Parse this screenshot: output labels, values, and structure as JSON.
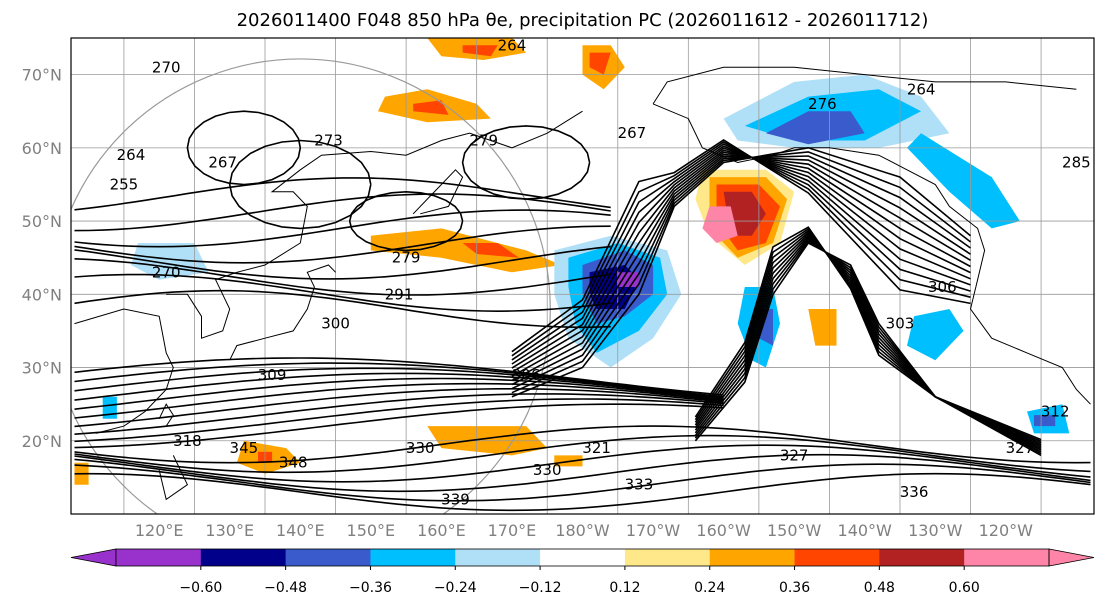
{
  "title": "2026011400 F048 850 hPa θe, precipitation PC (2026011612 - 2026011712)",
  "map": {
    "lat_ticks": [
      {
        "label": "70°N",
        "lat": 70
      },
      {
        "label": "60°N",
        "lat": 60
      },
      {
        "label": "50°N",
        "lat": 50
      },
      {
        "label": "40°N",
        "lat": 40
      },
      {
        "label": "30°N",
        "lat": 30
      },
      {
        "label": "20°N",
        "lat": 20
      }
    ],
    "lon_ticks": [
      "120°E",
      "130°E",
      "140°E",
      "150°E",
      "160°E",
      "170°E",
      "180°W",
      "170°W",
      "160°W",
      "150°W",
      "140°W",
      "130°W",
      "120°W"
    ],
    "contour_labels": [
      {
        "text": "264",
        "lon": 170,
        "lat": 74
      },
      {
        "text": "270",
        "lon": 121,
        "lat": 71
      },
      {
        "text": "273",
        "lon": 144,
        "lat": 61
      },
      {
        "text": "264",
        "lon": 116,
        "lat": 59
      },
      {
        "text": "267",
        "lon": 129,
        "lat": 58
      },
      {
        "text": "255",
        "lon": 115,
        "lat": 55
      },
      {
        "text": "270",
        "lon": 121,
        "lat": 43
      },
      {
        "text": "279",
        "lon": 155,
        "lat": 45
      },
      {
        "text": "291",
        "lon": 154,
        "lat": 40
      },
      {
        "text": "300",
        "lon": 145,
        "lat": 36
      },
      {
        "text": "309",
        "lon": 136,
        "lat": 29
      },
      {
        "text": "306",
        "lon": 172,
        "lat": 29
      },
      {
        "text": "321",
        "lon": 182,
        "lat": 19
      },
      {
        "text": "327",
        "lon": 210,
        "lat": 18
      },
      {
        "text": "330",
        "lon": 157,
        "lat": 19
      },
      {
        "text": "330",
        "lon": 175,
        "lat": 16
      },
      {
        "text": "333",
        "lon": 188,
        "lat": 14
      },
      {
        "text": "339",
        "lon": 162,
        "lat": 12
      },
      {
        "text": "336",
        "lon": 227,
        "lat": 13
      },
      {
        "text": "303",
        "lon": 225,
        "lat": 36
      },
      {
        "text": "306",
        "lon": 231,
        "lat": 41
      },
      {
        "text": "312",
        "lon": 247,
        "lat": 24
      },
      {
        "text": "327",
        "lon": 242,
        "lat": 19
      },
      {
        "text": "285",
        "lon": 250,
        "lat": 58
      },
      {
        "text": "264",
        "lon": 228,
        "lat": 68
      },
      {
        "text": "276",
        "lon": 214,
        "lat": 66
      },
      {
        "text": "267",
        "lon": 187,
        "lat": 62
      },
      {
        "text": "279",
        "lon": 166,
        "lat": 61
      },
      {
        "text": "318",
        "lon": 124,
        "lat": 20
      },
      {
        "text": "345",
        "lon": 132,
        "lat": 19
      },
      {
        "text": "348",
        "lon": 139,
        "lat": 17
      }
    ]
  },
  "colorbar": {
    "colors": [
      "#9932cc",
      "#00008b",
      "#3a5bcc",
      "#00bfff",
      "#b0e0f8",
      "#ffffff",
      "#ffe88a",
      "#ffa500",
      "#ff4500",
      "#b22222",
      "#ff85a8"
    ],
    "tick_labels": [
      "−0.60",
      "−0.48",
      "−0.36",
      "−0.24",
      "−0.12",
      "0.12",
      "0.24",
      "0.36",
      "0.48",
      "0.60"
    ]
  }
}
